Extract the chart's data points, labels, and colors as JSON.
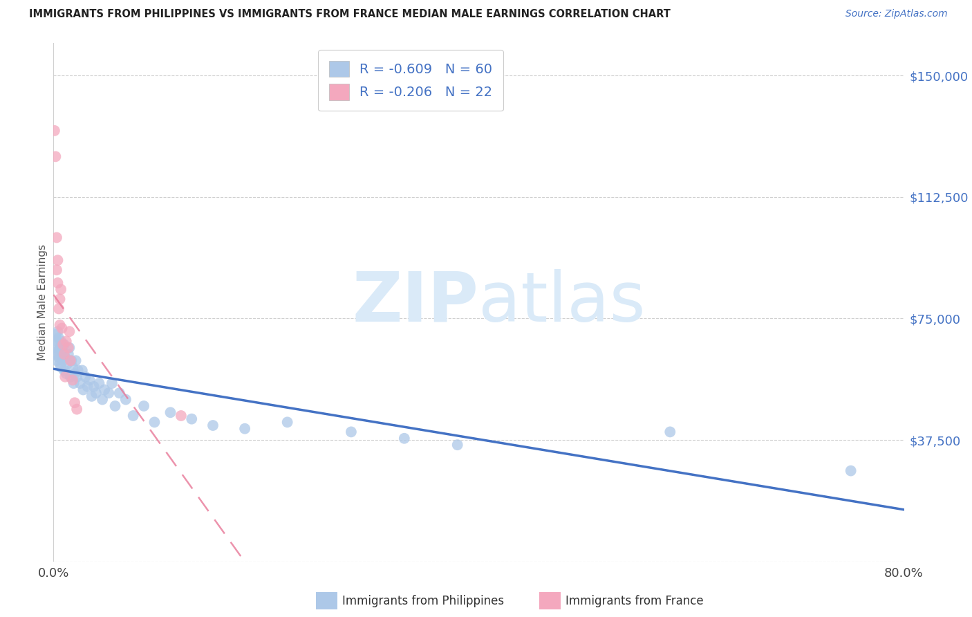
{
  "title": "IMMIGRANTS FROM PHILIPPINES VS IMMIGRANTS FROM FRANCE MEDIAN MALE EARNINGS CORRELATION CHART",
  "source": "Source: ZipAtlas.com",
  "ylabel": "Median Male Earnings",
  "xlim": [
    0.0,
    0.8
  ],
  "ylim": [
    0,
    160000
  ],
  "ytick_values": [
    0,
    37500,
    75000,
    112500,
    150000
  ],
  "ytick_labels_right": [
    "",
    "$37,500",
    "$75,000",
    "$112,500",
    "$150,000"
  ],
  "xtick_values": [
    0.0,
    0.8
  ],
  "xtick_labels": [
    "0.0%",
    "80.0%"
  ],
  "philippines_R": -0.609,
  "philippines_N": 60,
  "france_R": -0.206,
  "france_N": 22,
  "philippines_dot_color": "#adc8e8",
  "france_dot_color": "#f4a8be",
  "philippines_line_color": "#4472c4",
  "france_line_color": "#e87898",
  "legend_text_color": "#4472c4",
  "watermark_color": "#daeaf8",
  "title_color": "#222222",
  "source_color": "#4472c4",
  "ylabel_color": "#555555",
  "grid_color": "#d0d0d0",
  "background": "#ffffff",
  "philippines_x": [
    0.001,
    0.002,
    0.002,
    0.003,
    0.003,
    0.004,
    0.004,
    0.005,
    0.005,
    0.006,
    0.006,
    0.007,
    0.007,
    0.008,
    0.009,
    0.01,
    0.01,
    0.011,
    0.012,
    0.013,
    0.014,
    0.015,
    0.016,
    0.017,
    0.018,
    0.019,
    0.02,
    0.021,
    0.022,
    0.023,
    0.025,
    0.027,
    0.028,
    0.03,
    0.032,
    0.034,
    0.036,
    0.038,
    0.04,
    0.043,
    0.046,
    0.048,
    0.052,
    0.055,
    0.058,
    0.062,
    0.068,
    0.075,
    0.085,
    0.095,
    0.11,
    0.13,
    0.15,
    0.18,
    0.22,
    0.28,
    0.33,
    0.38,
    0.58,
    0.75
  ],
  "philippines_y": [
    67000,
    70000,
    64000,
    68000,
    62000,
    71000,
    65000,
    63000,
    69000,
    66000,
    61000,
    68000,
    60000,
    65000,
    62000,
    67000,
    59000,
    63000,
    58000,
    61000,
    64000,
    66000,
    57000,
    62000,
    60000,
    55000,
    58000,
    62000,
    57000,
    59000,
    55000,
    59000,
    53000,
    57000,
    54000,
    56000,
    51000,
    54000,
    52000,
    55000,
    50000,
    53000,
    52000,
    55000,
    48000,
    52000,
    50000,
    45000,
    48000,
    43000,
    46000,
    44000,
    42000,
    41000,
    43000,
    40000,
    38000,
    36000,
    40000,
    28000
  ],
  "philippines_sizes": [
    350,
    130,
    130,
    130,
    130,
    130,
    130,
    130,
    130,
    130,
    130,
    130,
    130,
    130,
    130,
    130,
    130,
    130,
    130,
    130,
    130,
    130,
    130,
    130,
    130,
    130,
    130,
    130,
    130,
    130,
    130,
    130,
    130,
    130,
    130,
    130,
    130,
    130,
    130,
    130,
    130,
    130,
    130,
    130,
    130,
    130,
    130,
    130,
    130,
    130,
    130,
    130,
    130,
    130,
    130,
    130,
    130,
    130,
    130,
    130
  ],
  "france_x": [
    0.001,
    0.002,
    0.003,
    0.003,
    0.004,
    0.004,
    0.005,
    0.006,
    0.006,
    0.007,
    0.008,
    0.009,
    0.01,
    0.011,
    0.012,
    0.014,
    0.015,
    0.016,
    0.018,
    0.02,
    0.022,
    0.12
  ],
  "france_y": [
    133000,
    125000,
    100000,
    90000,
    86000,
    93000,
    78000,
    81000,
    73000,
    84000,
    72000,
    67000,
    64000,
    57000,
    68000,
    66000,
    71000,
    62000,
    56000,
    49000,
    47000,
    45000
  ],
  "france_sizes": [
    130,
    130,
    130,
    130,
    130,
    130,
    130,
    130,
    130,
    130,
    130,
    130,
    130,
    130,
    130,
    130,
    130,
    130,
    130,
    130,
    130,
    130
  ],
  "phil_trend_x0": 0.0,
  "phil_trend_x1": 0.8,
  "france_trend_x0": 0.0,
  "france_trend_x1": 0.8
}
